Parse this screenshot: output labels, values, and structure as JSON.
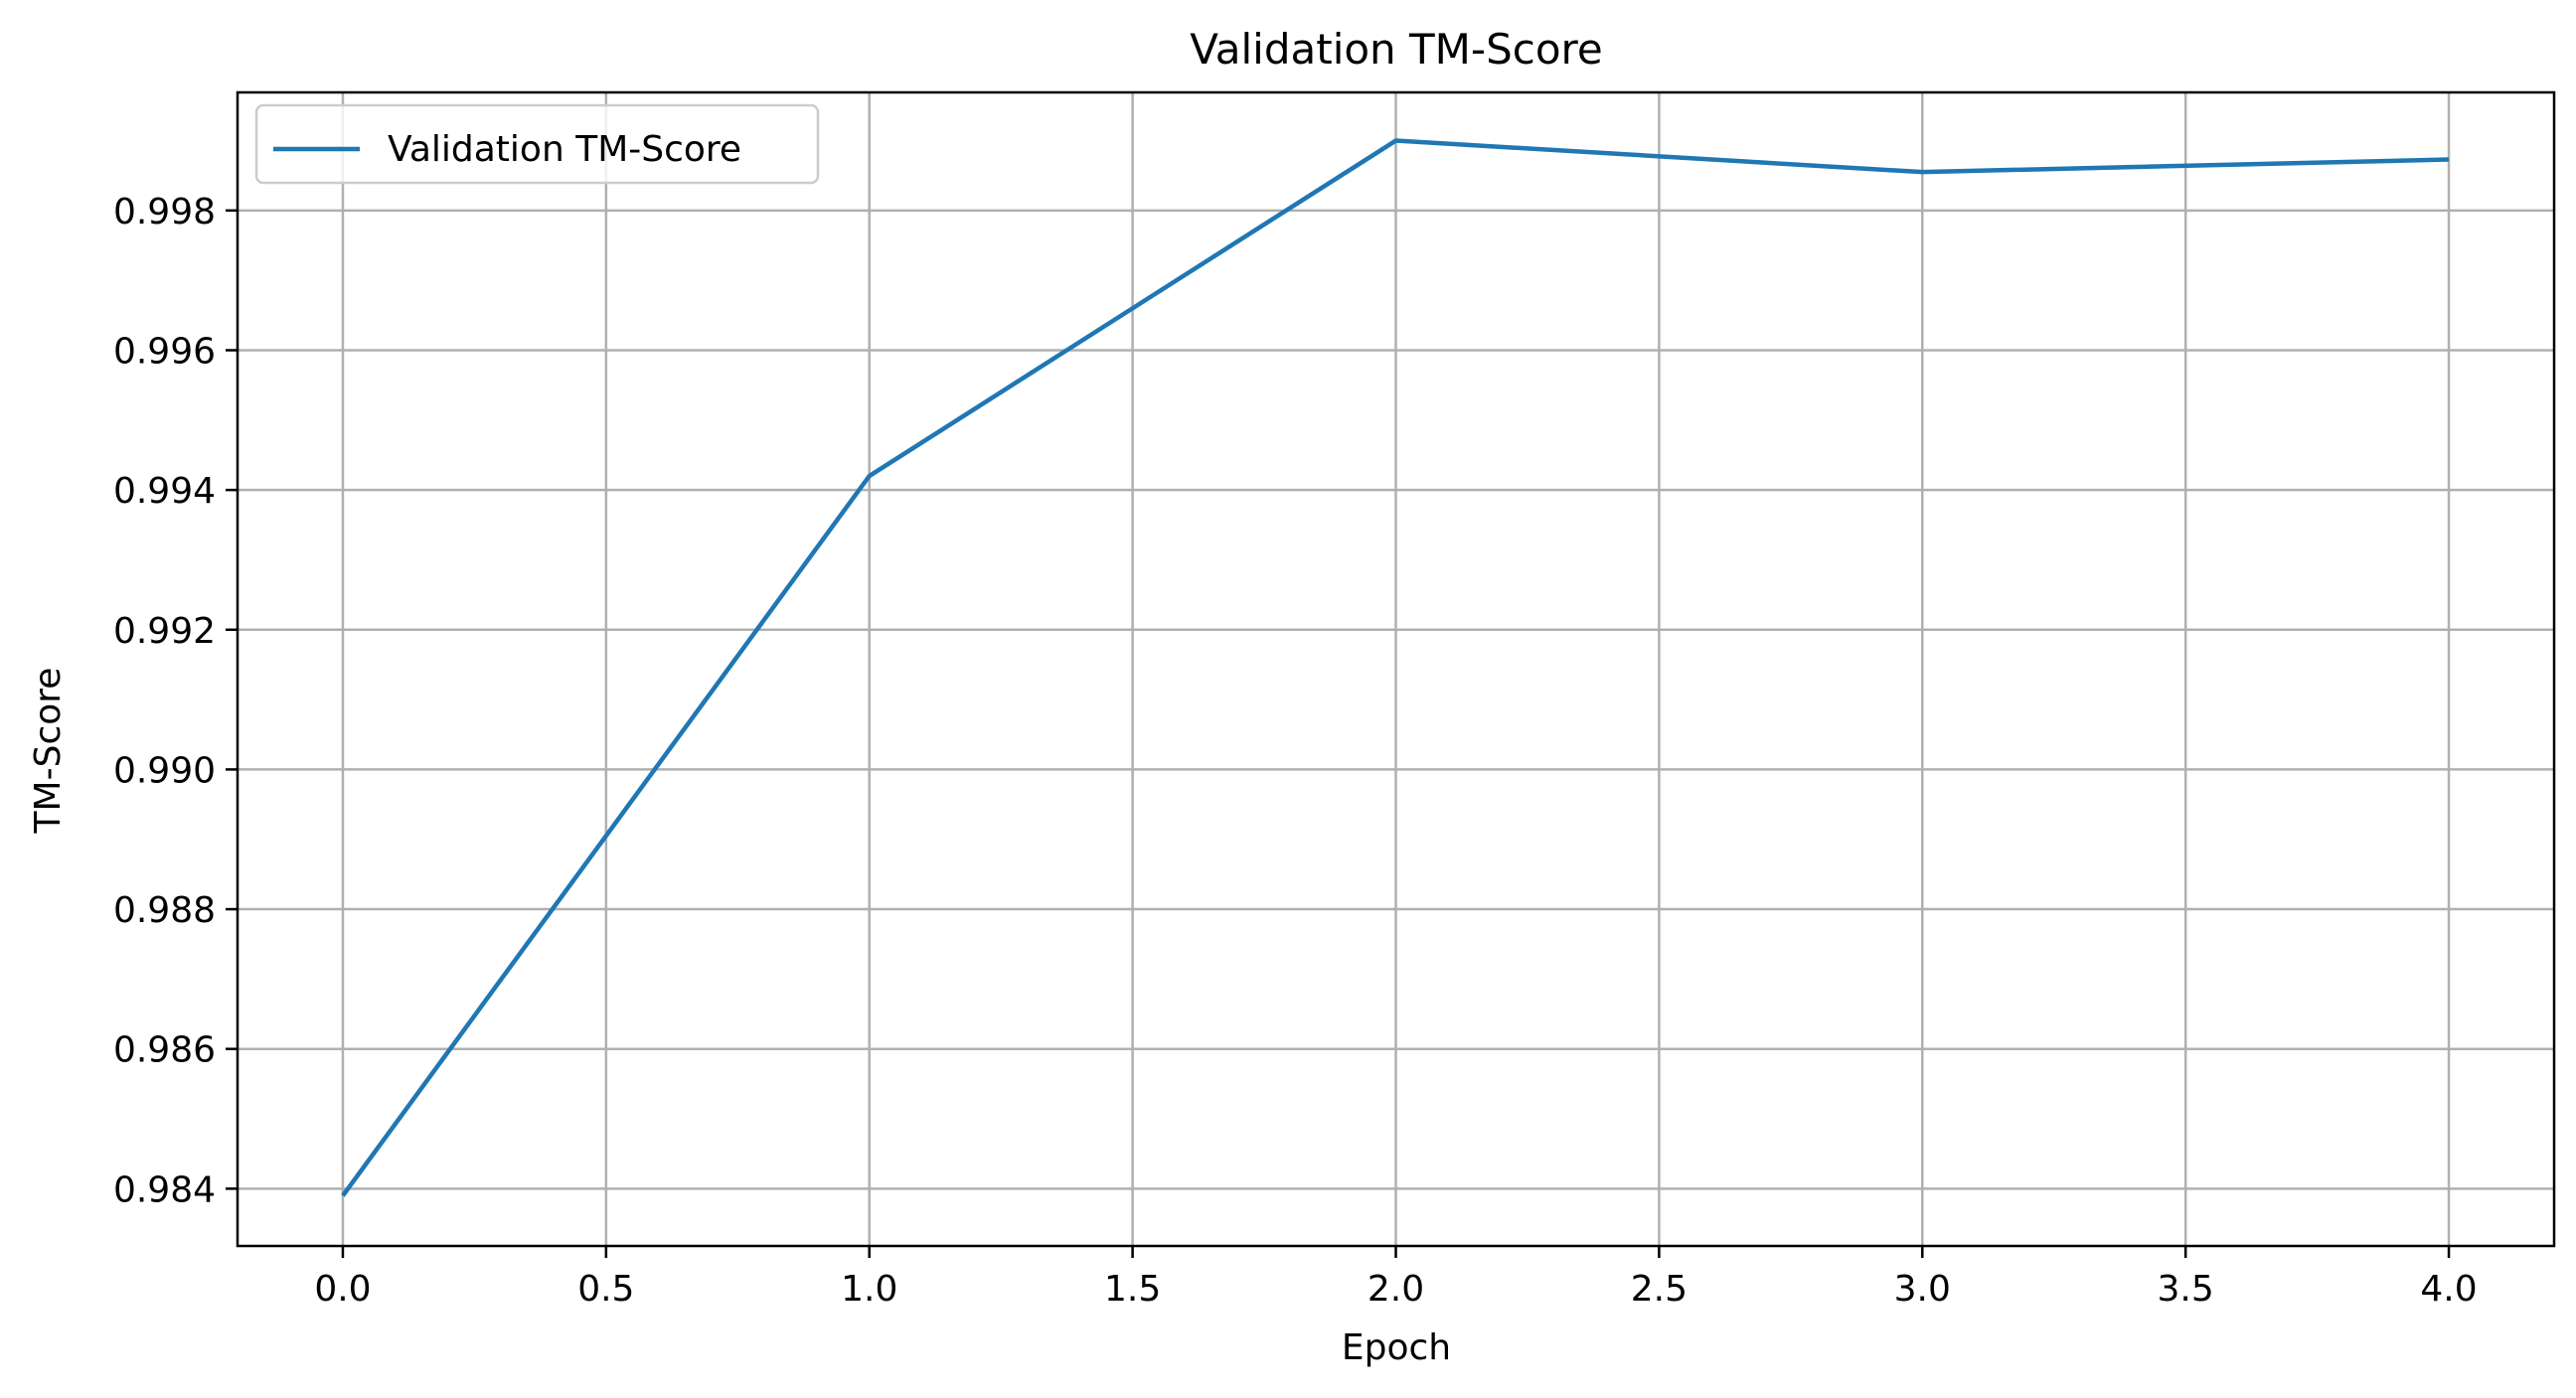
{
  "chart_data": {
    "type": "line",
    "title": "Validation TM-Score",
    "xlabel": "Epoch",
    "ylabel": "TM-Score",
    "xlim": [
      -0.2,
      4.2
    ],
    "ylim": [
      0.98318,
      0.99969
    ],
    "x_ticks": [
      0.0,
      0.5,
      1.0,
      1.5,
      2.0,
      2.5,
      3.0,
      3.5,
      4.0
    ],
    "x_tick_labels": [
      "0.0",
      "0.5",
      "1.0",
      "1.5",
      "2.0",
      "2.5",
      "3.0",
      "3.5",
      "4.0"
    ],
    "y_ticks": [
      0.984,
      0.986,
      0.988,
      0.99,
      0.992,
      0.994,
      0.996,
      0.998
    ],
    "y_tick_labels": [
      "0.984",
      "0.986",
      "0.988",
      "0.990",
      "0.992",
      "0.994",
      "0.996",
      "0.998"
    ],
    "grid": true,
    "legend_position": "top-left",
    "series": [
      {
        "name": "Validation TM-Score",
        "color": "#1f77b4",
        "x": [
          0,
          1,
          2,
          3,
          4
        ],
        "y": [
          0.9839,
          0.9942,
          0.999,
          0.99855,
          0.99873
        ]
      }
    ]
  }
}
